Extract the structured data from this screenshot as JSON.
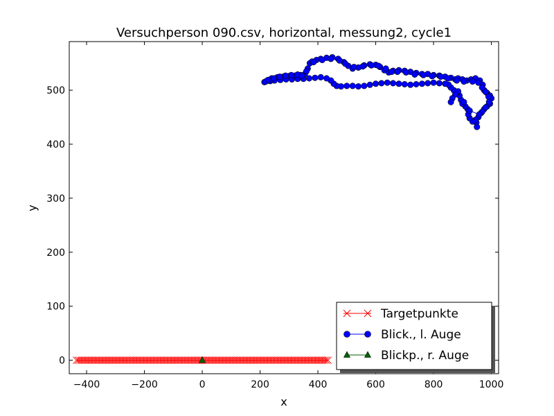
{
  "chart_data": {
    "type": "line",
    "title": "Versuchperson 090.csv, horizontal, messung2, cycle1",
    "xlabel": "x",
    "ylabel": "y",
    "xlim": [
      -460,
      1025
    ],
    "ylim": [
      -25,
      590
    ],
    "xticks": [
      -400,
      -200,
      0,
      200,
      400,
      600,
      800,
      1000
    ],
    "yticks": [
      0,
      100,
      200,
      300,
      400,
      500
    ],
    "xtick_labels": [
      "−400",
      "−200",
      "0",
      "200",
      "400",
      "600",
      "800",
      "1000"
    ],
    "ytick_labels": [
      "0",
      "100",
      "200",
      "300",
      "400",
      "500"
    ],
    "grid": false,
    "legend_position": "lower-right",
    "series": [
      {
        "name": "Targetpunkte",
        "color": "#ff0000",
        "marker": "x",
        "x_range": [
          -435,
          435
        ],
        "x_step": 6,
        "y_constant": 0
      },
      {
        "name": "Blick., l. Auge",
        "color": "#0000ff",
        "marker": "circle",
        "points": [
          [
            215,
            515
          ],
          [
            225,
            518
          ],
          [
            240,
            522
          ],
          [
            260,
            524
          ],
          [
            280,
            525
          ],
          [
            300,
            526
          ],
          [
            320,
            527
          ],
          [
            340,
            528
          ],
          [
            355,
            530
          ],
          [
            365,
            540
          ],
          [
            372,
            550
          ],
          [
            380,
            553
          ],
          [
            395,
            556
          ],
          [
            410,
            558
          ],
          [
            430,
            560
          ],
          [
            450,
            561
          ],
          [
            470,
            558
          ],
          [
            490,
            552
          ],
          [
            505,
            545
          ],
          [
            520,
            540
          ],
          [
            540,
            542
          ],
          [
            560,
            546
          ],
          [
            580,
            548
          ],
          [
            600,
            547
          ],
          [
            615,
            543
          ],
          [
            630,
            537
          ],
          [
            645,
            533
          ],
          [
            660,
            536
          ],
          [
            680,
            537
          ],
          [
            700,
            536
          ],
          [
            720,
            534
          ],
          [
            740,
            532
          ],
          [
            760,
            530
          ],
          [
            780,
            530
          ],
          [
            800,
            528
          ],
          [
            820,
            527
          ],
          [
            840,
            525
          ],
          [
            860,
            523
          ],
          [
            875,
            520
          ],
          [
            885,
            522
          ],
          [
            900,
            520
          ],
          [
            915,
            518
          ],
          [
            930,
            520
          ],
          [
            945,
            522
          ],
          [
            960,
            518
          ],
          [
            970,
            510
          ],
          [
            975,
            500
          ],
          [
            985,
            495
          ],
          [
            995,
            490
          ],
          [
            1000,
            485
          ],
          [
            995,
            475
          ],
          [
            985,
            470
          ],
          [
            975,
            465
          ],
          [
            965,
            458
          ],
          [
            955,
            450
          ],
          [
            948,
            440
          ],
          [
            950,
            432
          ],
          [
            945,
            445
          ],
          [
            935,
            442
          ],
          [
            925,
            448
          ],
          [
            920,
            455
          ],
          [
            918,
            465
          ],
          [
            910,
            470
          ],
          [
            900,
            475
          ],
          [
            895,
            482
          ],
          [
            890,
            490
          ],
          [
            880,
            495
          ],
          [
            870,
            500
          ],
          [
            860,
            505
          ],
          [
            852,
            510
          ],
          [
            840,
            512
          ],
          [
            820,
            513
          ],
          [
            800,
            514
          ],
          [
            780,
            513
          ],
          [
            760,
            512
          ],
          [
            740,
            511
          ],
          [
            720,
            510
          ],
          [
            700,
            511
          ],
          [
            680,
            512
          ],
          [
            660,
            513
          ],
          [
            640,
            514
          ],
          [
            620,
            513
          ],
          [
            600,
            512
          ],
          [
            580,
            510
          ],
          [
            560,
            508
          ],
          [
            540,
            507
          ],
          [
            520,
            508
          ],
          [
            500,
            508
          ],
          [
            480,
            507
          ],
          [
            465,
            508
          ],
          [
            455,
            512
          ],
          [
            445,
            518
          ],
          [
            430,
            522
          ],
          [
            410,
            524
          ],
          [
            390,
            523
          ],
          [
            370,
            522
          ],
          [
            350,
            521
          ],
          [
            330,
            521
          ],
          [
            310,
            520
          ],
          [
            290,
            520
          ],
          [
            270,
            519
          ],
          [
            250,
            518
          ],
          [
            235,
            517
          ],
          [
            220,
            516
          ],
          [
            228,
            519
          ],
          [
            248,
            522
          ],
          [
            268,
            525
          ],
          [
            288,
            527
          ],
          [
            308,
            528
          ],
          [
            330,
            529
          ],
          [
            345,
            527
          ],
          [
            360,
            535
          ],
          [
            385,
            552
          ],
          [
            415,
            556
          ],
          [
            445,
            558
          ],
          [
            475,
            555
          ],
          [
            495,
            549
          ],
          [
            525,
            543
          ],
          [
            555,
            544
          ],
          [
            585,
            546
          ],
          [
            610,
            545
          ],
          [
            635,
            540
          ],
          [
            655,
            534
          ],
          [
            675,
            534
          ],
          [
            705,
            533
          ],
          [
            735,
            529
          ],
          [
            765,
            528
          ],
          [
            795,
            526
          ],
          [
            825,
            525
          ],
          [
            850,
            522
          ],
          [
            880,
            518
          ],
          [
            905,
            516
          ],
          [
            935,
            516
          ],
          [
            955,
            514
          ],
          [
            968,
            505
          ],
          [
            980,
            497
          ],
          [
            990,
            488
          ],
          [
            992,
            478
          ],
          [
            980,
            468
          ],
          [
            968,
            460
          ],
          [
            958,
            455
          ],
          [
            925,
            462
          ],
          [
            905,
            478
          ],
          [
            885,
            498
          ],
          [
            875,
            492
          ],
          [
            865,
            485
          ],
          [
            860,
            478
          ]
        ]
      },
      {
        "name": "Blickp., r. Auge",
        "color": "#006400",
        "marker": "triangle",
        "points": [
          [
            0,
            0
          ]
        ]
      }
    ]
  }
}
